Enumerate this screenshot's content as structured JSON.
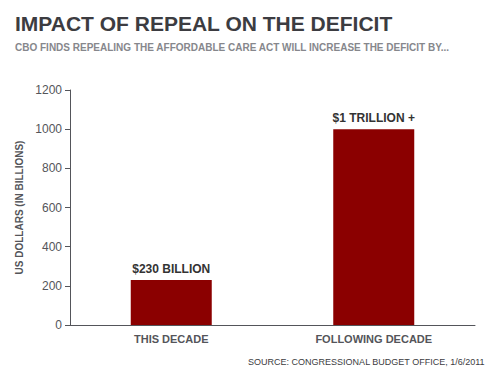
{
  "chart_data": {
    "type": "bar",
    "title": "IMPACT OF REPEAL ON THE DEFICIT",
    "subtitle": "CBO FINDS REPEALING THE AFFORDABLE CARE ACT WILL INCREASE THE DEFICIT BY...",
    "categories": [
      "THIS DECADE",
      "FOLLOWING DECADE"
    ],
    "values": [
      230,
      1000
    ],
    "value_labels": [
      "$230 BILLION",
      "$1 TRILLION +"
    ],
    "data_labels": true,
    "color": "#8B0000",
    "ylabel": "US DOLLARS (IN BILLIONS)",
    "ylim": [
      0,
      1200
    ],
    "yticks": [
      0,
      200,
      400,
      600,
      800,
      1000,
      1200
    ],
    "grid": false,
    "source": "SOURCE: CONGRESSIONAL BUDGET OFFICE, 1/6/2011"
  }
}
